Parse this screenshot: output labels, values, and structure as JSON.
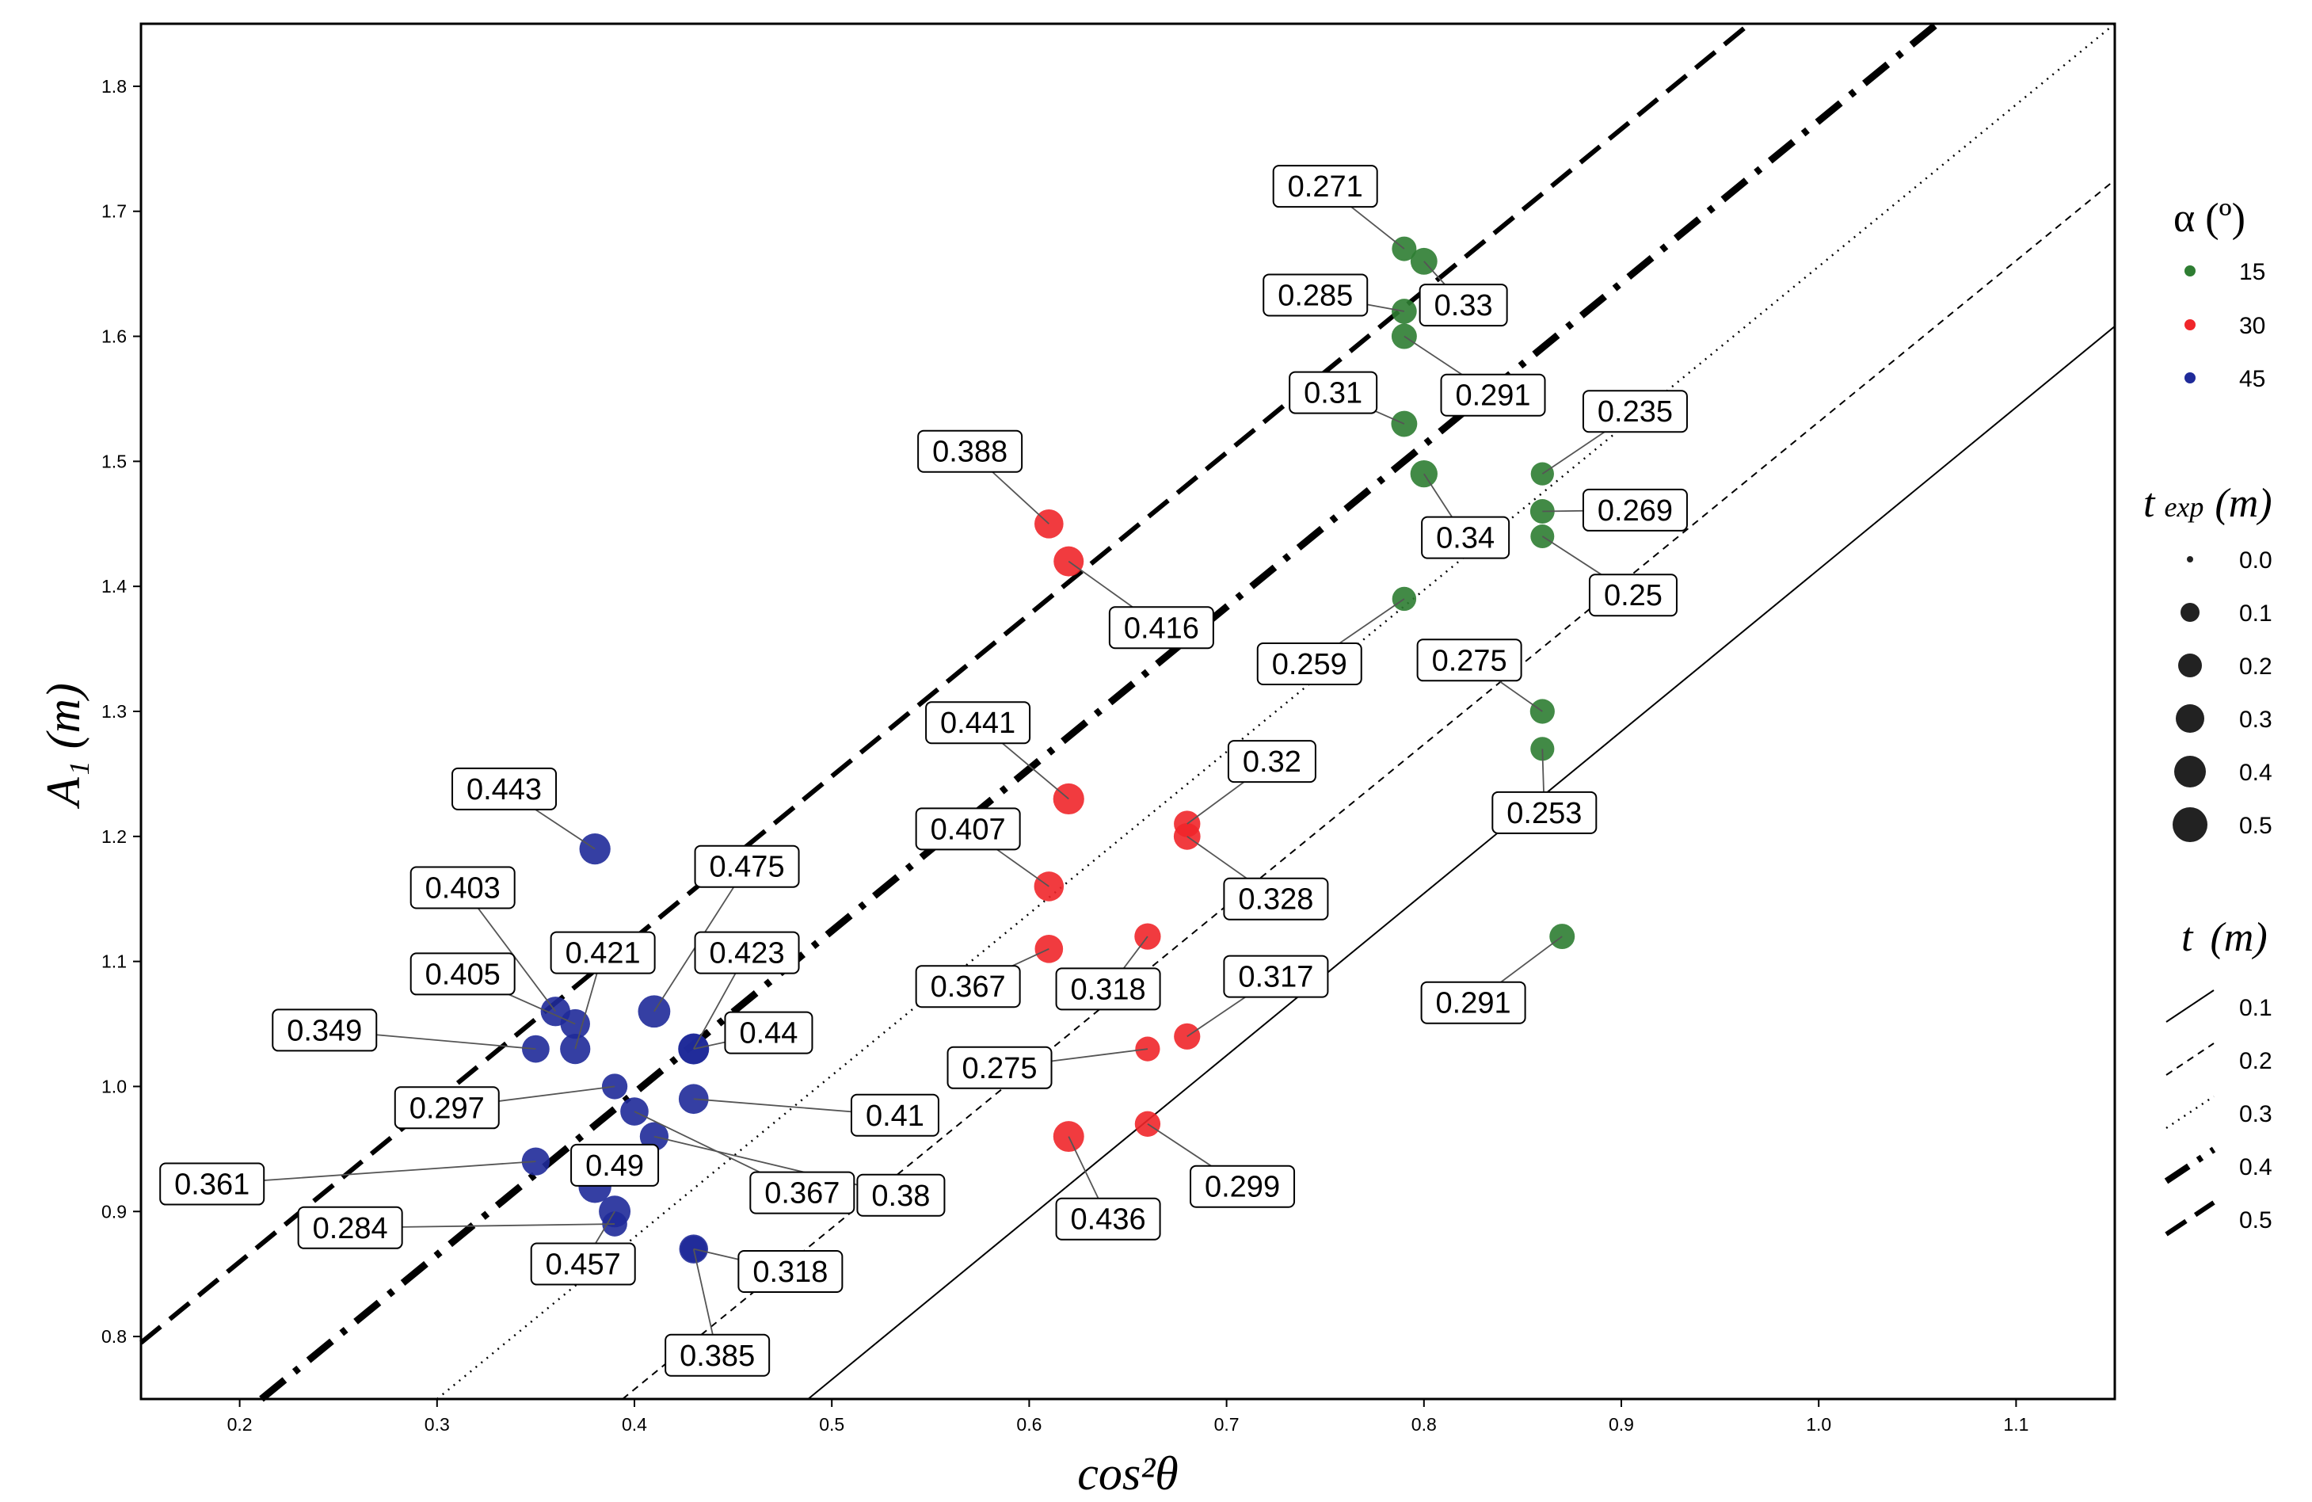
{
  "chart_data": {
    "type": "scatter",
    "xlabel": "cos²θ",
    "ylabel": "A₁ (m)",
    "xlim": [
      0.15,
      1.15
    ],
    "ylim": [
      0.75,
      1.85
    ],
    "x_ticks": [
      "0.2",
      "0.3",
      "0.4",
      "0.5",
      "0.6",
      "0.7",
      "0.8",
      "0.9",
      "1.0",
      "1.1"
    ],
    "y_ticks": [
      "0.8",
      "0.9",
      "1.0",
      "1.1",
      "1.2",
      "1.3",
      "1.4",
      "1.5",
      "1.6",
      "1.7",
      "1.8"
    ],
    "grid": false,
    "legend_alpha": {
      "title": "α (º)",
      "entries": [
        {
          "label": "15",
          "color": "#2e7d32"
        },
        {
          "label": "30",
          "color": "#f0262a"
        },
        {
          "label": "45",
          "color": "#1f2a99"
        }
      ]
    },
    "legend_texp": {
      "title_main": "t",
      "title_sub": "exp",
      "title_unit": "(m)",
      "entries": [
        "0.0",
        "0.1",
        "0.2",
        "0.3",
        "0.4",
        "0.5"
      ]
    },
    "legend_t": {
      "title_main": "t",
      "title_unit": "(m)",
      "entries": [
        {
          "label": "0.1",
          "style": "solid"
        },
        {
          "label": "0.2",
          "style": "dashed"
        },
        {
          "label": "0.3",
          "style": "dotted"
        },
        {
          "label": "0.4",
          "style": "dashdot"
        },
        {
          "label": "0.5",
          "style": "longdash"
        }
      ]
    },
    "lines": [
      {
        "t": "0.1",
        "style": "solid",
        "x0": 0.488,
        "y0": 0.75,
        "x1": 1.15,
        "y1": 1.608
      },
      {
        "t": "0.2",
        "style": "dashed",
        "x0": 0.394,
        "y0": 0.75,
        "x1": 1.15,
        "y1": 1.725
      },
      {
        "t": "0.3",
        "style": "dotted",
        "x0": 0.3,
        "y0": 0.75,
        "x1": 1.15,
        "y1": 1.85
      },
      {
        "t": "0.4",
        "style": "dashdot",
        "x0": 0.211,
        "y0": 0.75,
        "x1": 1.06,
        "y1": 1.85
      },
      {
        "t": "0.5",
        "style": "longdash",
        "x0": 0.15,
        "y0": 0.795,
        "x1": 0.965,
        "y1": 1.85
      }
    ],
    "points": [
      {
        "alpha": "15",
        "x": 0.79,
        "y": 1.67,
        "label": "0.271",
        "lx": 0.75,
        "ly": 1.72
      },
      {
        "alpha": "15",
        "x": 0.8,
        "y": 1.66,
        "label": "0.33",
        "lx": 0.82,
        "ly": 1.625
      },
      {
        "alpha": "15",
        "x": 0.79,
        "y": 1.62,
        "label": "0.285",
        "lx": 0.745,
        "ly": 1.633
      },
      {
        "alpha": "15",
        "x": 0.79,
        "y": 1.6,
        "label": "0.291",
        "lx": 0.835,
        "ly": 1.553
      },
      {
        "alpha": "15",
        "x": 0.79,
        "y": 1.53,
        "label": "0.31",
        "lx": 0.754,
        "ly": 1.555
      },
      {
        "alpha": "15",
        "x": 0.8,
        "y": 1.49,
        "label": "0.34",
        "lx": 0.821,
        "ly": 1.439
      },
      {
        "alpha": "15",
        "x": 0.86,
        "y": 1.49,
        "label": "0.235",
        "lx": 0.907,
        "ly": 1.54
      },
      {
        "alpha": "15",
        "x": 0.86,
        "y": 1.46,
        "label": "0.269",
        "lx": 0.907,
        "ly": 1.461
      },
      {
        "alpha": "15",
        "x": 0.86,
        "y": 1.44,
        "label": "0.25",
        "lx": 0.906,
        "ly": 1.393
      },
      {
        "alpha": "15",
        "x": 0.79,
        "y": 1.39,
        "label": "0.259",
        "lx": 0.742,
        "ly": 1.338
      },
      {
        "alpha": "15",
        "x": 0.86,
        "y": 1.3,
        "label": "0.275",
        "lx": 0.823,
        "ly": 1.341
      },
      {
        "alpha": "15",
        "x": 0.86,
        "y": 1.27,
        "label": "0.253",
        "lx": 0.861,
        "ly": 1.219
      },
      {
        "alpha": "15",
        "x": 0.87,
        "y": 1.12,
        "label": "0.291",
        "lx": 0.825,
        "ly": 1.067
      },
      {
        "alpha": "30",
        "x": 0.61,
        "y": 1.45,
        "label": "0.388",
        "lx": 0.57,
        "ly": 1.508
      },
      {
        "alpha": "30",
        "x": 0.62,
        "y": 1.42,
        "label": "0.416",
        "lx": 0.667,
        "ly": 1.367
      },
      {
        "alpha": "30",
        "x": 0.62,
        "y": 1.23,
        "label": "0.441",
        "lx": 0.574,
        "ly": 1.291
      },
      {
        "alpha": "30",
        "x": 0.61,
        "y": 1.16,
        "label": "0.407",
        "lx": 0.569,
        "ly": 1.206
      },
      {
        "alpha": "30",
        "x": 0.61,
        "y": 1.11,
        "label": "0.367",
        "lx": 0.569,
        "ly": 1.08
      },
      {
        "alpha": "30",
        "x": 0.66,
        "y": 1.12,
        "label": "0.318",
        "lx": 0.64,
        "ly": 1.078
      },
      {
        "alpha": "30",
        "x": 0.68,
        "y": 1.21,
        "label": "0.32",
        "lx": 0.723,
        "ly": 1.26
      },
      {
        "alpha": "30",
        "x": 0.68,
        "y": 1.2,
        "label": "0.328",
        "lx": 0.725,
        "ly": 1.15
      },
      {
        "alpha": "30",
        "x": 0.68,
        "y": 1.04,
        "label": "0.317",
        "lx": 0.725,
        "ly": 1.088
      },
      {
        "alpha": "30",
        "x": 0.66,
        "y": 1.03,
        "label": "0.275",
        "lx": 0.585,
        "ly": 1.015
      },
      {
        "alpha": "30",
        "x": 0.62,
        "y": 0.96,
        "label": "0.436",
        "lx": 0.64,
        "ly": 0.894
      },
      {
        "alpha": "30",
        "x": 0.66,
        "y": 0.97,
        "label": "0.299",
        "lx": 0.708,
        "ly": 0.92
      },
      {
        "alpha": "45",
        "x": 0.38,
        "y": 1.19,
        "label": "0.443",
        "lx": 0.334,
        "ly": 1.238
      },
      {
        "alpha": "45",
        "x": 0.36,
        "y": 1.06,
        "label": "0.403",
        "lx": 0.313,
        "ly": 1.159
      },
      {
        "alpha": "45",
        "x": 0.37,
        "y": 1.05,
        "label": "0.405",
        "lx": 0.313,
        "ly": 1.09
      },
      {
        "alpha": "45",
        "x": 0.37,
        "y": 1.03,
        "label": "0.421",
        "lx": 0.384,
        "ly": 1.107
      },
      {
        "alpha": "45",
        "x": 0.41,
        "y": 1.06,
        "label": "0.475",
        "lx": 0.457,
        "ly": 1.176
      },
      {
        "alpha": "45",
        "x": 0.43,
        "y": 1.03,
        "label": "0.423",
        "lx": 0.457,
        "ly": 1.107
      },
      {
        "alpha": "45",
        "x": 0.35,
        "y": 1.03,
        "label": "0.349",
        "lx": 0.243,
        "ly": 1.045
      },
      {
        "alpha": "45",
        "x": 0.43,
        "y": 1.03,
        "label": "0.44",
        "lx": 0.468,
        "ly": 1.043
      },
      {
        "alpha": "45",
        "x": 0.39,
        "y": 1.0,
        "label": "0.297",
        "lx": 0.305,
        "ly": 0.983
      },
      {
        "alpha": "45",
        "x": 0.43,
        "y": 0.99,
        "label": "0.41",
        "lx": 0.532,
        "ly": 0.977
      },
      {
        "alpha": "45",
        "x": 0.41,
        "y": 0.96,
        "label": "0.38",
        "lx": 0.535,
        "ly": 0.913
      },
      {
        "alpha": "45",
        "x": 0.4,
        "y": 0.98,
        "label": "0.367",
        "lx": 0.485,
        "ly": 0.915
      },
      {
        "alpha": "45",
        "x": 0.35,
        "y": 0.94,
        "label": "0.361",
        "lx": 0.186,
        "ly": 0.922
      },
      {
        "alpha": "45",
        "x": 0.38,
        "y": 0.92,
        "label": "0.49",
        "lx": 0.39,
        "ly": 0.937
      },
      {
        "alpha": "45",
        "x": 0.39,
        "y": 0.89,
        "label": "0.284",
        "lx": 0.256,
        "ly": 0.887
      },
      {
        "alpha": "45",
        "x": 0.39,
        "y": 0.9,
        "label": "0.457",
        "lx": 0.374,
        "ly": 0.858
      },
      {
        "alpha": "45",
        "x": 0.43,
        "y": 0.87,
        "label": "0.318",
        "lx": 0.479,
        "ly": 0.852
      },
      {
        "alpha": "45",
        "x": 0.43,
        "y": 0.87,
        "label": "0.385",
        "lx": 0.442,
        "ly": 0.785
      }
    ]
  }
}
